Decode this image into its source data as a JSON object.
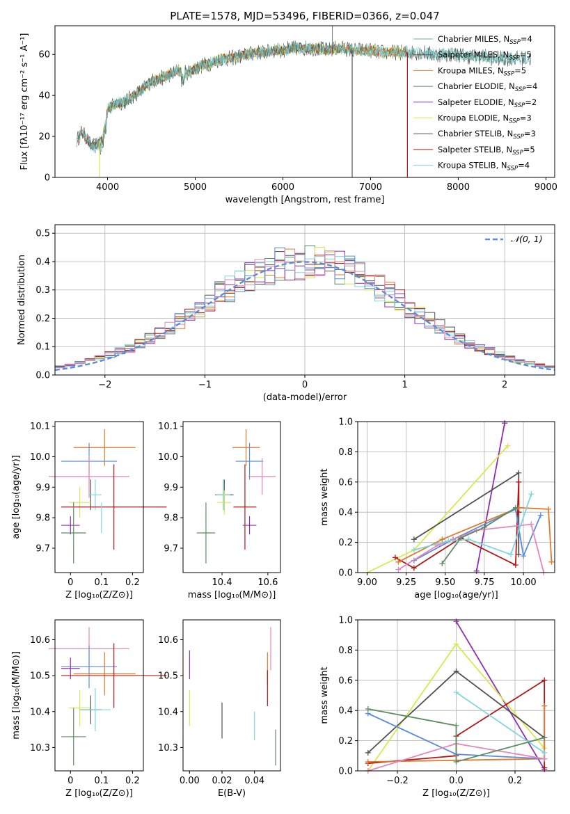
{
  "title": "PLATE=1578, MJD=53496, FIBERID=0366, z=0.047",
  "colors": {
    "Chabrier MILES": "#7fa7a0",
    "Salpeter MILES": "#555555",
    "Kroupa MILES": "#e07a2a",
    "Chabrier ELODIE": "#5a8a6a",
    "Salpeter ELODIE": "#8e2fb0",
    "Kroupa ELODIE": "#d8e850",
    "Chabrier STELIB": "#505050",
    "Salpeter STELIB": "#b01818",
    "Kroupa STELIB": "#7fd6dc",
    "blue": "#5b8bdb",
    "pink": "#e586bc",
    "green": "#5d8c64",
    "orange": "#e07a2a"
  },
  "chart_data": [
    {
      "type": "line",
      "xlabel": "wavelength [Angstrom, rest frame]",
      "ylabel": "Flux [fλ10⁻¹⁷ erg cm⁻² s⁻¹ A⁻¹]",
      "xlim": [
        3400,
        9100
      ],
      "ylim": [
        0,
        74
      ],
      "xticks": [
        4000,
        5000,
        6000,
        7000,
        8000,
        9000
      ],
      "yticks": [
        0,
        20,
        40,
        60
      ],
      "legend_position": "top-right",
      "legend": [
        {
          "base": "Chabrier MILES, N",
          "sub": "SSP",
          "tail": "=4"
        },
        {
          "base": "Salpeter MILES, N",
          "sub": "SSP",
          "tail": "=5"
        },
        {
          "base": "Kroupa MILES, N",
          "sub": "SSP",
          "tail": "=5"
        },
        {
          "base": "Chabrier ELODIE, N",
          "sub": "SSP",
          "tail": "=4"
        },
        {
          "base": "Salpeter ELODIE, N",
          "sub": "SSP",
          "tail": "=2"
        },
        {
          "base": "Kroupa ELODIE, N",
          "sub": "SSP",
          "tail": "=3"
        },
        {
          "base": "Chabrier STELIB, N",
          "sub": "SSP",
          "tail": "=3"
        },
        {
          "base": "Salpeter STELIB, N",
          "sub": "SSP",
          "tail": "=5"
        },
        {
          "base": "Kroupa STELIB, N",
          "sub": "SSP",
          "tail": "=4"
        }
      ],
      "series_colors": [
        "Chabrier MILES",
        "Salpeter MILES",
        "Kroupa MILES",
        "Chabrier ELODIE",
        "Salpeter ELODIE",
        "Kroupa ELODIE",
        "Chabrier STELIB",
        "Salpeter STELIB",
        "Kroupa STELIB"
      ],
      "series": [
        {
          "x": [
            3650,
            3700,
            3750,
            3800,
            3850,
            3900,
            3950,
            4000,
            4100,
            4200,
            4300,
            4400,
            4500,
            4600,
            4700,
            4800,
            4900,
            5000,
            5100,
            5200,
            5300,
            5400,
            5500,
            5600,
            5700,
            5800,
            5900,
            6000,
            6100,
            6200,
            6300,
            6400,
            6500,
            6600,
            6700,
            6800,
            6900,
            7000,
            7100,
            7200,
            7300,
            7400,
            7500,
            7600,
            7700,
            7800,
            7900,
            8000,
            8100,
            8200,
            8300,
            8400,
            8500,
            8600,
            8700,
            8800
          ],
          "y": [
            18,
            22,
            20,
            16,
            15,
            17,
            22,
            33,
            36,
            37,
            40,
            43,
            47,
            48,
            50,
            52,
            51,
            53,
            55,
            56,
            58,
            58,
            59,
            60,
            61,
            61,
            62,
            62,
            63,
            63,
            63,
            63,
            62,
            63,
            63,
            62,
            62,
            62,
            61,
            61,
            61,
            61,
            61,
            61,
            60,
            60,
            60,
            60,
            59,
            59,
            59,
            58,
            58,
            58,
            58,
            58
          ]
        }
      ],
      "dropouts": [
        {
          "series": "Salpeter MILES",
          "x": 6790
        },
        {
          "series": "Kroupa ELODIE",
          "x": 3910
        },
        {
          "series": "Salpeter STELIB",
          "x": 7420
        }
      ],
      "spike": {
        "x": 6565,
        "y": 75
      }
    },
    {
      "type": "histogram",
      "xlabel": "(data-model)/error",
      "ylabel": "Normed distribution",
      "xlim": [
        -2.5,
        2.5
      ],
      "ylim": [
        0,
        0.53
      ],
      "xticks": [
        -2,
        -1,
        0,
        1,
        2
      ],
      "yticks": [
        0.0,
        0.1,
        0.2,
        0.3,
        0.4,
        0.5
      ],
      "grid": true,
      "bin_width": 0.1,
      "reference_curve": {
        "name": "N(0,1)",
        "label_text": "𝒩(0, 1)",
        "mu": 0,
        "sigma": 1
      },
      "legend_position": "top-right"
    },
    {
      "type": "errorbar",
      "xlabel_text": "Z [log₁₀(Z/Z⊙)]",
      "ylabel_text": "age [log₁₀(age/yr)]",
      "xlim": [
        -0.05,
        0.235
      ],
      "ylim": [
        9.62,
        10.115
      ],
      "xticks": [
        0.0,
        0.1,
        0.2
      ],
      "yticks": [
        9.7,
        9.8,
        9.9,
        10.0,
        10.1
      ],
      "points": [
        {
          "c": "orange",
          "x": 0.11,
          "xe": 0.1,
          "y": 10.03,
          "ye": 0.06
        },
        {
          "c": "blue",
          "x": 0.06,
          "xe": 0.09,
          "y": 9.985,
          "ye": 0.06
        },
        {
          "c": "pink",
          "x": 0.06,
          "xe": 0.13,
          "y": 9.935,
          "ye": 0.07
        },
        {
          "c": "Chabrier STELIB",
          "x": 0.065,
          "xe": 0.002,
          "y": 9.875,
          "ye": 0.05
        },
        {
          "c": "Kroupa STELIB",
          "x": 0.08,
          "xe": 0.02,
          "y": 9.875,
          "ye": 0.05
        },
        {
          "c": "Kroupa ELODIE",
          "x": 0.03,
          "xe": 0.035,
          "y": 9.85,
          "ye": 0.05
        },
        {
          "c": "Salpeter STELIB",
          "x": 0.14,
          "xe": 0.17,
          "y": 9.835,
          "ye": 0.14
        },
        {
          "c": "Salpeter ELODIE",
          "x": 0.0,
          "xe": 0.03,
          "y": 9.775,
          "ye": 0.03
        },
        {
          "c": "green",
          "x": 0.01,
          "xe": 0.04,
          "y": 9.75,
          "ye": 0.1
        },
        {
          "c": "Kroupa STELIB",
          "x": 0.1,
          "xe": 0.001,
          "y": 9.8,
          "ye": 0.05
        }
      ]
    },
    {
      "type": "errorbar",
      "xlabel_text": "mass [log₁₀(M/M⊙)]",
      "ylabel_text": "",
      "xlim": [
        10.23,
        10.655
      ],
      "ylim": [
        9.62,
        10.115
      ],
      "xticks": [
        10.4,
        10.6
      ],
      "yticks": [
        9.7,
        9.8,
        9.9,
        10.0,
        10.1
      ],
      "points": [
        {
          "c": "orange",
          "x": 10.505,
          "xe": 0.06,
          "y": 10.03,
          "ye": 0.06
        },
        {
          "c": "blue",
          "x": 10.52,
          "xe": 0.06,
          "y": 9.985,
          "ye": 0.06
        },
        {
          "c": "pink",
          "x": 10.575,
          "xe": 0.06,
          "y": 9.935,
          "ye": 0.06
        },
        {
          "c": "Chabrier STELIB",
          "x": 10.41,
          "xe": 0.04,
          "y": 9.875,
          "ye": 0.05
        },
        {
          "c": "Kroupa STELIB",
          "x": 10.405,
          "xe": 0.03,
          "y": 9.875,
          "ye": 0.05
        },
        {
          "c": "Kroupa ELODIE",
          "x": 10.41,
          "xe": 0.03,
          "y": 9.85,
          "ye": 0.04
        },
        {
          "c": "Salpeter STELIB",
          "x": 10.5,
          "xe": 0.05,
          "y": 9.835,
          "ye": 0.14
        },
        {
          "c": "Salpeter ELODIE",
          "x": 10.52,
          "xe": 0.03,
          "y": 9.775,
          "ye": 0.03
        },
        {
          "c": "green",
          "x": 10.33,
          "xe": 0.04,
          "y": 9.75,
          "ye": 0.1
        }
      ]
    },
    {
      "type": "line",
      "xlabel_text": "age [log₁₀(age/yr)]",
      "ylabel": "mass weight",
      "xlim": [
        8.94,
        10.2
      ],
      "ylim": [
        0,
        1.0
      ],
      "xticks": [
        9.0,
        9.25,
        9.5,
        9.75,
        10.0
      ],
      "xticklabels": [
        "9.00",
        "9.25",
        "9.50",
        "9.75",
        "10.00"
      ],
      "yticks": [
        0.0,
        0.2,
        0.4,
        0.6,
        0.8,
        1.0
      ],
      "grid": true,
      "series": [
        {
          "c": "Salpeter ELODIE",
          "x": [
            9.7,
            9.88
          ],
          "y": [
            0.01,
            0.99
          ]
        },
        {
          "c": "Kroupa ELODIE",
          "x": [
            9.0,
            9.3,
            9.9
          ],
          "y": [
            0.0,
            0.15,
            0.84
          ]
        },
        {
          "c": "Chabrier STELIB",
          "x": [
            9.3,
            9.97,
            9.97
          ],
          "y": [
            0.22,
            0.66,
            0.12
          ]
        },
        {
          "c": "Salpeter STELIB",
          "x": [
            9.18,
            9.3,
            9.6,
            9.95,
            9.97,
            9.97
          ],
          "y": [
            0.1,
            0.03,
            0.23,
            0.05,
            0.6,
            0.4
          ]
        },
        {
          "c": "orange",
          "x": [
            9.2,
            9.48,
            9.97,
            10.16,
            10.18
          ],
          "y": [
            0.07,
            0.22,
            0.43,
            0.42,
            0.07
          ]
        },
        {
          "c": "blue",
          "x": [
            9.3,
            9.55,
            9.95,
            10.0,
            10.11
          ],
          "y": [
            0.08,
            0.22,
            0.42,
            0.11,
            0.38
          ]
        },
        {
          "c": "pink",
          "x": [
            9.2,
            9.45,
            9.7,
            10.05,
            10.13
          ],
          "y": [
            0.02,
            0.18,
            0.28,
            0.32,
            0.0
          ]
        },
        {
          "c": "Kroupa STELIB",
          "x": [
            9.3,
            9.52,
            9.65,
            9.92,
            10.05
          ],
          "y": [
            0.15,
            0.21,
            0.22,
            0.12,
            0.52
          ]
        },
        {
          "c": "green",
          "x": [
            9.48,
            9.6,
            9.75,
            9.95
          ],
          "y": [
            0.06,
            0.23,
            0.3,
            0.43
          ]
        }
      ]
    },
    {
      "type": "errorbar",
      "xlabel_text": "Z [log₁₀(Z/Z⊙)]",
      "ylabel_text": "mass [log₁₀(M/M⊙)]",
      "xlim": [
        -0.05,
        0.235
      ],
      "ylim": [
        10.235,
        10.655
      ],
      "xticks": [
        0.0,
        0.1,
        0.2
      ],
      "yticks": [
        10.3,
        10.4,
        10.5,
        10.6
      ],
      "points": [
        {
          "c": "pink",
          "x": 0.06,
          "xe": 0.13,
          "y": 10.575,
          "ye": 0.06
        },
        {
          "c": "blue",
          "x": 0.06,
          "xe": 0.09,
          "y": 10.525,
          "ye": 0.06
        },
        {
          "c": "orange",
          "x": 0.11,
          "xe": 0.1,
          "y": 10.505,
          "ye": 0.06
        },
        {
          "c": "Salpeter ELODIE",
          "x": 0.0,
          "xe": 0.03,
          "y": 10.52,
          "ye": 0.03
        },
        {
          "c": "Salpeter STELIB",
          "x": 0.14,
          "xe": 0.17,
          "y": 10.5,
          "ye": 0.09
        },
        {
          "c": "Kroupa ELODIE",
          "x": 0.03,
          "xe": 0.035,
          "y": 10.41,
          "ye": 0.05
        },
        {
          "c": "Chabrier STELIB",
          "x": 0.065,
          "xe": 0.035,
          "y": 10.405,
          "ye": 0.04
        },
        {
          "c": "Kroupa STELIB",
          "x": 0.08,
          "xe": 0.05,
          "y": 10.405,
          "ye": 0.06
        },
        {
          "c": "green",
          "x": 0.01,
          "xe": 0.04,
          "y": 10.33,
          "ye": 0.08
        }
      ]
    },
    {
      "type": "errorbar",
      "xlabel": "E(B-V)",
      "ylabel_text": "",
      "xlim": [
        -0.004,
        0.056
      ],
      "ylim": [
        10.235,
        10.655
      ],
      "xticks": [
        0.0,
        0.02,
        0.04
      ],
      "xticklabels": [
        "0.00",
        "0.02",
        "0.04"
      ],
      "yticks": [
        10.3,
        10.4,
        10.5,
        10.6
      ],
      "points": [
        {
          "c": "pink",
          "x": 0.05,
          "xe": 0.0,
          "y": 10.575,
          "ye": 0.06
        },
        {
          "c": "Salpeter ELODIE",
          "x": 0.0,
          "xe": 0.0,
          "y": 10.53,
          "ye": 0.04
        },
        {
          "c": "orange",
          "x": 0.048,
          "xe": 0.0,
          "y": 10.52,
          "ye": 0.045
        },
        {
          "c": "Salpeter STELIB",
          "x": 0.048,
          "xe": 0.0,
          "y": 10.465,
          "ye": 0.05
        },
        {
          "c": "Kroupa ELODIE",
          "x": 0.0,
          "xe": 0.0,
          "y": 10.41,
          "ye": 0.05
        },
        {
          "c": "Chabrier STELIB",
          "x": 0.02,
          "xe": 0.0,
          "y": 10.375,
          "ye": 0.05
        },
        {
          "c": "Kroupa STELIB",
          "x": 0.04,
          "xe": 0.0,
          "y": 10.36,
          "ye": 0.04
        },
        {
          "c": "green",
          "x": 0.053,
          "xe": 0.0,
          "y": 10.3,
          "ye": 0.05
        }
      ]
    },
    {
      "type": "line",
      "xlabel_text": "Z [log₁₀(Z/Z⊙)]",
      "ylabel": "mass weight",
      "xlim": [
        -0.335,
        0.335
      ],
      "ylim": [
        0,
        1.0
      ],
      "xticks": [
        -0.2,
        0.0,
        0.2
      ],
      "xticklabels": [
        "−0.2",
        "0.0",
        "0.2"
      ],
      "yticks": [
        0.0,
        0.2,
        0.4,
        0.6,
        0.8,
        1.0
      ],
      "grid": true,
      "series": [
        {
          "c": "Salpeter ELODIE",
          "x": [
            0.0,
            0.3
          ],
          "y": [
            0.99,
            0.01
          ]
        },
        {
          "c": "Kroupa ELODIE",
          "x": [
            -0.3,
            0.0,
            0.3
          ],
          "y": [
            0.0,
            0.84,
            0.15
          ]
        },
        {
          "c": "Chabrier STELIB",
          "x": [
            -0.3,
            0.0,
            0.3,
            0.3
          ],
          "y": [
            0.12,
            0.66,
            0.22,
            0.22
          ]
        },
        {
          "c": "Salpeter STELIB",
          "x": [
            -0.3,
            0.0,
            0.0,
            0.3,
            0.3
          ],
          "y": [
            0.05,
            0.1,
            0.23,
            0.6,
            0.02
          ]
        },
        {
          "c": "orange",
          "x": [
            -0.3,
            0.0,
            0.3,
            0.3
          ],
          "y": [
            0.06,
            0.07,
            0.08,
            0.43
          ]
        },
        {
          "c": "blue",
          "x": [
            -0.3,
            0.0,
            0.3
          ],
          "y": [
            0.38,
            0.11,
            0.08
          ]
        },
        {
          "c": "pink",
          "x": [
            -0.3,
            0.0,
            0.3
          ],
          "y": [
            0.0,
            0.18,
            0.08
          ]
        },
        {
          "c": "Kroupa STELIB",
          "x": [
            0.0,
            0.3
          ],
          "y": [
            0.52,
            0.12
          ]
        },
        {
          "c": "green",
          "x": [
            -0.3,
            0.0,
            0.0,
            0.3
          ],
          "y": [
            0.41,
            0.3,
            0.06,
            0.22
          ]
        }
      ]
    }
  ]
}
